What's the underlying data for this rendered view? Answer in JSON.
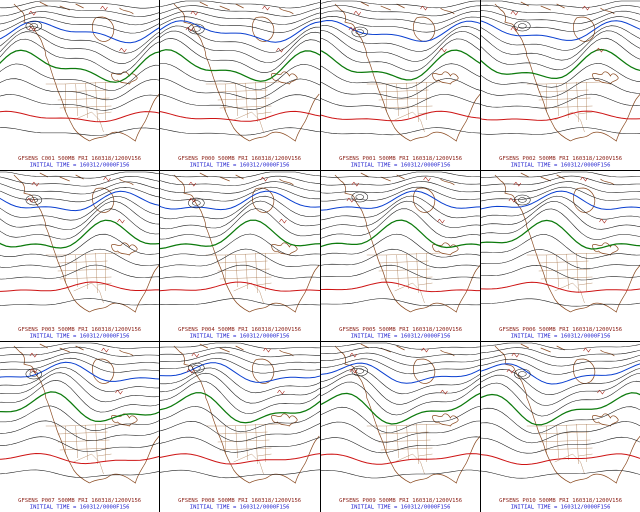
{
  "app": {
    "title": "GFS Ensemble (GFSENS) 500MB 12-panel member plot",
    "product": "500MB heights",
    "valid_label": "FRI 160318/1200V156",
    "initial_label": "INITIAL TIME = 160312/0000F156"
  },
  "colors": {
    "caption_valid": "#8b2017",
    "caption_initial": "#1c1ccd",
    "coastline": "#8a4a20",
    "state_border": "#a06a3c",
    "height_contour": "#1a1a1a",
    "blue_contour": "#0a3fd0",
    "green_contour": "#0c7a0c",
    "red_contour": "#cd1414",
    "background": "#ffffff",
    "panel_frame": "#000000"
  },
  "panels": [
    {
      "member": "C001",
      "line1": "GFSENS C001 500MB FRI 160318/1200V156",
      "line2": "INITIAL TIME = 160312/0000F156"
    },
    {
      "member": "P000",
      "line1": "GFSENS P000 500MB FRI 160318/1200V156",
      "line2": "INITIAL TIME = 160312/0000F156"
    },
    {
      "member": "P001",
      "line1": "GFSENS P001 500MB FRI 160318/1200V156",
      "line2": "INITIAL TIME = 160312/0000F156"
    },
    {
      "member": "P002",
      "line1": "GFSENS P002 500MB FRI 160318/1200V156",
      "line2": "INITIAL TIME = 160312/0000F156"
    },
    {
      "member": "P003",
      "line1": "GFSENS P003 500MB FRI 160318/1200V156",
      "line2": "INITIAL TIME = 160312/0000F156"
    },
    {
      "member": "P004",
      "line1": "GFSENS P004 500MB FRI 160318/1200V156",
      "line2": "INITIAL TIME = 160312/0000F156"
    },
    {
      "member": "P005",
      "line1": "GFSENS P005 500MB FRI 160318/1200V156",
      "line2": "INITIAL TIME = 160312/0000F156"
    },
    {
      "member": "P006",
      "line1": "GFSENS P006 500MB FRI 160318/1200V156",
      "line2": "INITIAL TIME = 160312/0000F156"
    },
    {
      "member": "P007",
      "line1": "GFSENS P007 500MB FRI 160318/1200V156",
      "line2": "INITIAL TIME = 160312/0000F156"
    },
    {
      "member": "P008",
      "line1": "GFSENS P008 500MB FRI 160318/1200V156",
      "line2": "INITIAL TIME = 160312/0000F156"
    },
    {
      "member": "P009",
      "line1": "GFSENS P009 500MB FRI 160318/1200V156",
      "line2": "INITIAL TIME = 160312/0000F156"
    },
    {
      "member": "P010",
      "line1": "GFSENS P010 500MB FRI 160318/1200V156",
      "line2": "INITIAL TIME = 160312/0000F156"
    }
  ]
}
